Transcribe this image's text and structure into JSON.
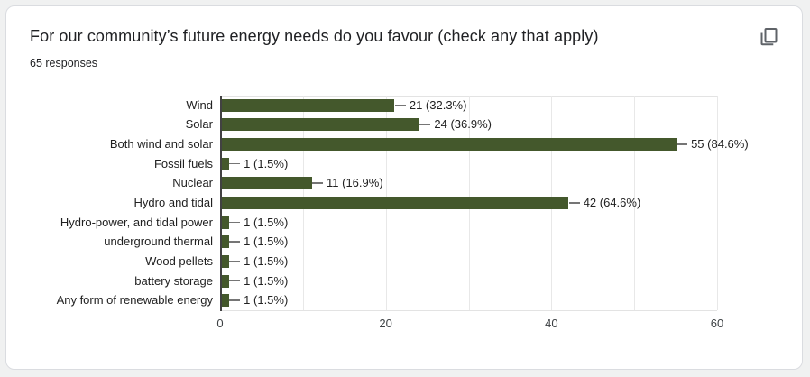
{
  "card": {
    "title": "For our community’s future energy needs do you favour (check any that apply)",
    "responses_label": "65 responses"
  },
  "icons": {
    "copy": "copy-icon"
  },
  "colors": {
    "bar": "#44582c",
    "page_background": "#f0f1f1",
    "card_background": "#ffffff",
    "card_border": "#dadce0",
    "icon": "#5f6368",
    "gridline": "#e8e8e8",
    "axis_line": "#424242",
    "connector": "#757575",
    "text": "#212121"
  },
  "chart_data": {
    "type": "bar",
    "orientation": "horizontal",
    "title": "For our community’s future energy needs do you favour (check any that apply)",
    "subtitle": "65 responses",
    "total_responses": 65,
    "categories": [
      "Wind",
      "Solar",
      "Both wind and solar",
      "Fossil fuels",
      "Nuclear",
      "Hydro and tidal",
      "Hydro-power, and tidal power",
      "underground thermal",
      "Wood pellets",
      "battery storage",
      "Any form of renewable energy"
    ],
    "values": [
      21,
      24,
      55,
      1,
      11,
      42,
      1,
      1,
      1,
      1,
      1
    ],
    "value_labels": [
      "21 (32.3%)",
      "24 (36.9%)",
      "55 (84.6%)",
      "1 (1.5%)",
      "11 (16.9%)",
      "42 (64.6%)",
      "1 (1.5%)",
      "1 (1.5%)",
      "1 (1.5%)",
      "1 (1.5%)",
      "1 (1.5%)"
    ],
    "xlabel": "",
    "ylabel": "",
    "xlim": [
      0,
      60
    ],
    "xticks": [
      0,
      20,
      40,
      60
    ],
    "gridline_step": 10,
    "grid": true,
    "legend": false
  }
}
